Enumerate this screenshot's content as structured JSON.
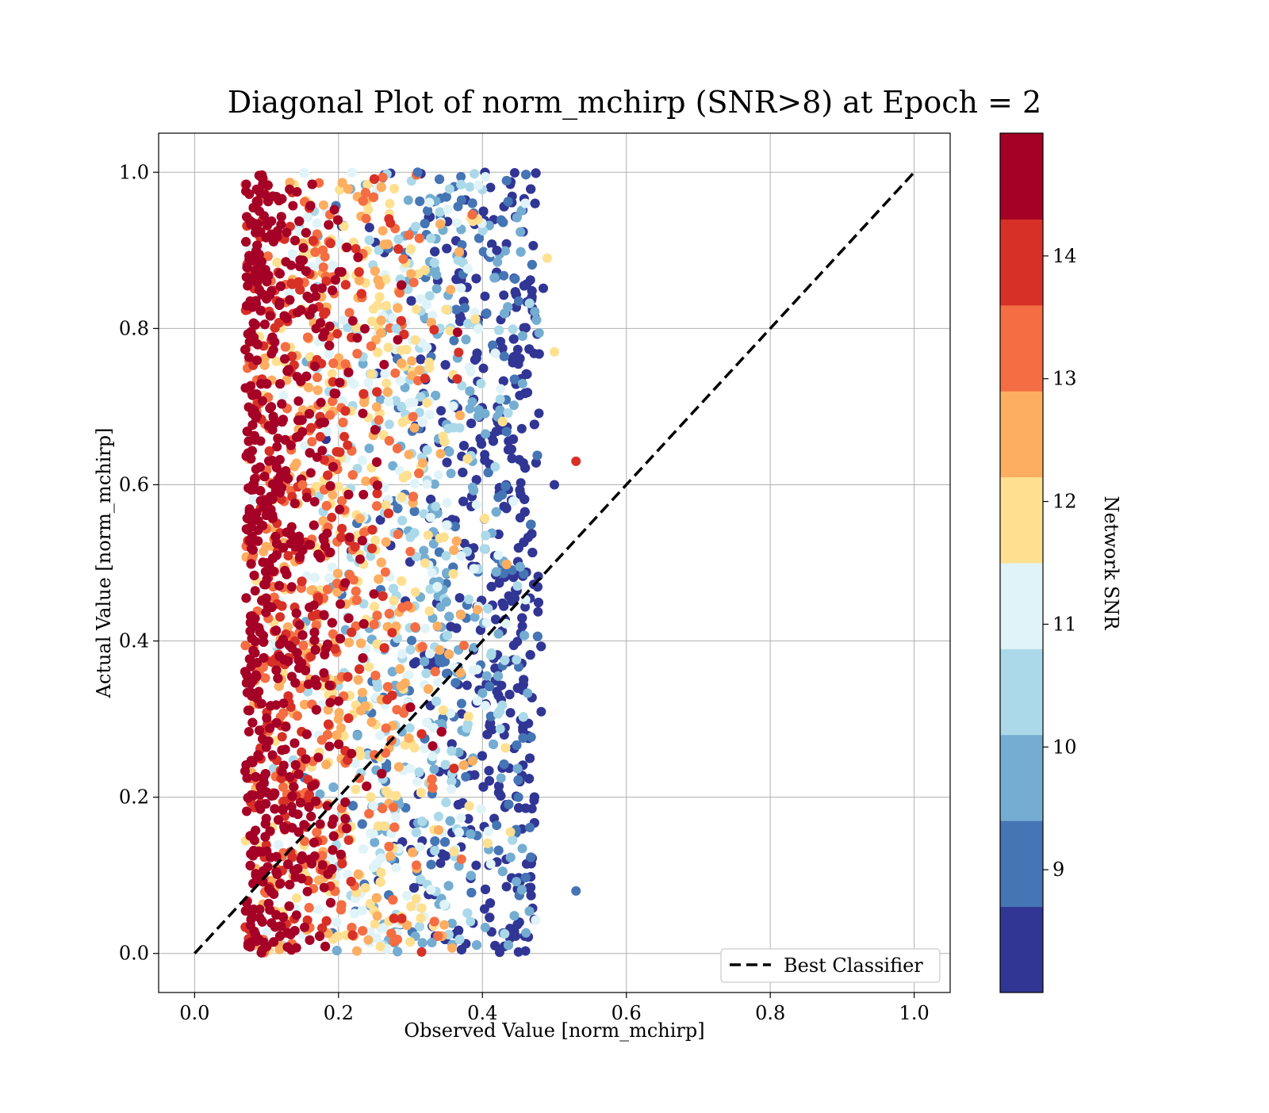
{
  "chart_data": {
    "type": "scatter",
    "title": "Diagonal Plot of norm_mchirp (SNR>8) at Epoch = 2",
    "xlabel": "Observed Value [norm_mchirp]",
    "ylabel": "Actual Value [norm_mchirp]",
    "xlim": [
      -0.05,
      1.05
    ],
    "ylim": [
      -0.05,
      1.05
    ],
    "x_ticks": [
      0.0,
      0.2,
      0.4,
      0.6,
      0.8,
      1.0
    ],
    "y_ticks": [
      0.0,
      0.2,
      0.4,
      0.6,
      0.8,
      1.0
    ],
    "x_tick_labels": [
      "0.0",
      "0.2",
      "0.4",
      "0.6",
      "0.8",
      "1.0"
    ],
    "y_tick_labels": [
      "0.0",
      "0.2",
      "0.4",
      "0.6",
      "0.8",
      "1.0"
    ],
    "grid": true,
    "legend": {
      "position": "lower-right",
      "entries": [
        "Best Classifier"
      ]
    },
    "reference_line": {
      "name": "Best Classifier",
      "style": "dashed",
      "color": "#000000",
      "x": [
        0.0,
        1.0
      ],
      "y": [
        0.0,
        1.0
      ]
    },
    "colorbar": {
      "label": "Network SNR",
      "range": [
        8,
        15
      ],
      "ticks": [
        9,
        10,
        11,
        12,
        13,
        14
      ],
      "tick_labels": [
        "9",
        "10",
        "11",
        "12",
        "13",
        "14"
      ],
      "colors": [
        "#313695",
        "#4575b4",
        "#74add1",
        "#abd9e9",
        "#e0f3f8",
        "#fee090",
        "#fdae61",
        "#f46d43",
        "#d73027",
        "#a50026"
      ]
    },
    "series": [
      {
        "points_approx": "dense band; estimated summary",
        "x_range": [
          0.07,
          0.53
        ],
        "y_range": [
          0.0,
          1.0
        ],
        "snr_pattern": "high SNR (~15) concentrated near x=0.08-0.12; lower SNR (8-11) spread toward x=0.3-0.47",
        "samples": [
          {
            "x": 0.09,
            "y": 0.95,
            "snr": 14.8
          },
          {
            "x": 0.1,
            "y": 0.5,
            "snr": 14.9
          },
          {
            "x": 0.085,
            "y": 0.1,
            "snr": 14.7
          },
          {
            "x": 0.15,
            "y": 0.6,
            "snr": 13.2
          },
          {
            "x": 0.2,
            "y": 0.3,
            "snr": 12.4
          },
          {
            "x": 0.28,
            "y": 0.8,
            "snr": 10.6
          },
          {
            "x": 0.35,
            "y": 0.45,
            "snr": 9.6
          },
          {
            "x": 0.42,
            "y": 0.9,
            "snr": 8.3
          },
          {
            "x": 0.45,
            "y": 0.2,
            "snr": 9.1
          },
          {
            "x": 0.5,
            "y": 0.6,
            "snr": 8.5
          },
          {
            "x": 0.53,
            "y": 0.63,
            "snr": 13.7
          },
          {
            "x": 0.53,
            "y": 0.08,
            "snr": 9.3
          },
          {
            "x": 0.31,
            "y": 1.0,
            "snr": 9.2
          },
          {
            "x": 0.49,
            "y": 0.89,
            "snr": 12.2
          },
          {
            "x": 0.5,
            "y": 0.77,
            "snr": 12.1
          }
        ]
      }
    ]
  }
}
